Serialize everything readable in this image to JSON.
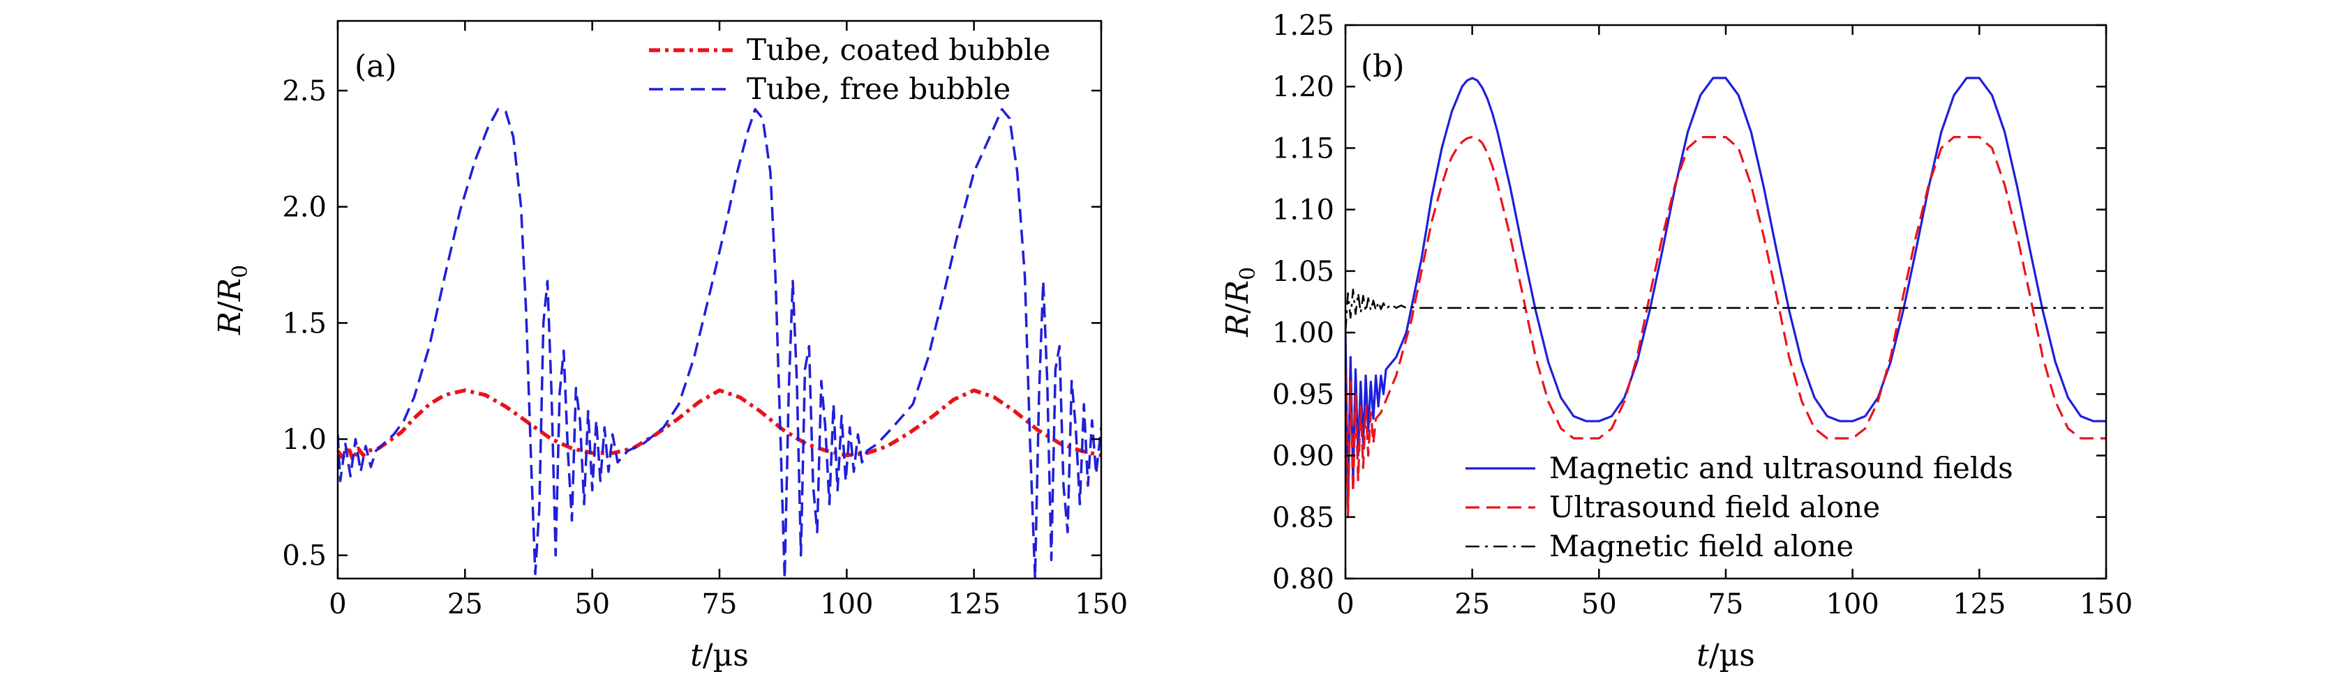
{
  "chart_data": [
    {
      "panel": "(a)",
      "type": "line",
      "xlabel_var": "t",
      "xlabel_unit": "/µs",
      "ylabel_var": "R",
      "ylabel_sep": "/",
      "ylabel_sub_var": "R",
      "ylabel_sub": "0",
      "xlim": [
        0,
        150
      ],
      "ylim": [
        0.4,
        2.8
      ],
      "xticks": [
        0,
        25,
        50,
        75,
        100,
        125,
        150
      ],
      "yticks": [
        0.5,
        1.0,
        1.5,
        2.0,
        2.5
      ],
      "ytick_labels": [
        "0.5",
        "1.0",
        "1.5",
        "2.0",
        "2.5"
      ],
      "legend_position": "top-right",
      "series": [
        {
          "name": "Tube, coated bubble",
          "color": "#e8141c",
          "style": "dash-dot-thick",
          "x": [
            0,
            1,
            2,
            3,
            4,
            5,
            6,
            8,
            10,
            12.5,
            15,
            18,
            21,
            25,
            29,
            33,
            37.5,
            42,
            46,
            50,
            54,
            58,
            62.5,
            67,
            71,
            75,
            79,
            83,
            87.5,
            92,
            96,
            100,
            104,
            108,
            112.5,
            117,
            121,
            125,
            129,
            133,
            137.5,
            142,
            146,
            150
          ],
          "y": [
            0.95,
            0.92,
            0.97,
            0.91,
            0.96,
            0.93,
            0.95,
            0.96,
            0.99,
            1.03,
            1.09,
            1.15,
            1.19,
            1.21,
            1.19,
            1.14,
            1.07,
            1.0,
            0.96,
            0.94,
            0.94,
            0.96,
            1.02,
            1.09,
            1.16,
            1.21,
            1.18,
            1.12,
            1.04,
            0.98,
            0.95,
            0.93,
            0.94,
            0.97,
            1.03,
            1.1,
            1.17,
            1.21,
            1.18,
            1.12,
            1.04,
            0.98,
            0.95,
            0.93
          ]
        },
        {
          "name": "Tube, free bubble",
          "color": "#1f1fd9",
          "style": "dashed",
          "x": [
            0,
            0.5,
            1.5,
            2.5,
            3.5,
            4.5,
            5.5,
            6.5,
            7.5,
            9,
            11,
            13,
            15,
            18,
            21,
            24,
            27,
            29.5,
            31.5,
            33,
            34.5,
            36,
            37,
            38,
            38.8,
            39.6,
            40.4,
            41.2,
            42,
            42.8,
            43.6,
            44.4,
            45.2,
            46,
            46.8,
            47.6,
            48.4,
            49.2,
            50,
            50.8,
            51.6,
            52.4,
            53.2,
            54,
            55,
            57,
            60,
            64,
            67,
            70,
            73,
            76,
            78.5,
            80.5,
            82,
            83.5,
            85,
            86,
            87,
            87.8,
            88.6,
            89.4,
            90.2,
            91,
            91.8,
            92.6,
            93.4,
            94.2,
            95,
            95.8,
            96.6,
            97.4,
            98.2,
            99,
            99.8,
            100.6,
            101.4,
            102.2,
            103,
            104,
            106,
            109,
            113,
            116,
            119,
            122,
            125,
            128.5,
            130.5,
            132,
            133.5,
            135,
            136,
            137,
            137.8,
            138.6,
            139.4,
            140.2,
            141,
            141.8,
            142.6,
            143.4,
            144.2,
            145,
            145.8,
            146.6,
            147.4,
            148.2,
            149,
            150
          ],
          "y": [
            1.02,
            0.82,
            0.98,
            0.84,
            1.0,
            0.86,
            0.97,
            0.88,
            0.95,
            0.98,
            1.02,
            1.08,
            1.18,
            1.4,
            1.7,
            1.98,
            2.2,
            2.34,
            2.42,
            2.41,
            2.3,
            2.0,
            1.55,
            0.9,
            0.42,
            0.7,
            1.5,
            1.68,
            1.2,
            0.5,
            1.2,
            1.38,
            0.95,
            0.65,
            1.22,
            1.08,
            0.72,
            1.12,
            0.78,
            1.08,
            0.82,
            1.05,
            0.86,
            1.02,
            0.9,
            0.95,
            0.98,
            1.05,
            1.15,
            1.35,
            1.62,
            1.9,
            2.15,
            2.32,
            2.42,
            2.38,
            2.15,
            1.7,
            1.0,
            0.4,
            1.2,
            1.68,
            1.25,
            0.5,
            1.3,
            1.4,
            0.8,
            0.6,
            1.25,
            1.05,
            0.72,
            1.15,
            0.78,
            1.1,
            0.82,
            1.05,
            0.86,
            1.02,
            0.9,
            0.95,
            0.98,
            1.05,
            1.15,
            1.35,
            1.62,
            1.9,
            2.15,
            2.32,
            2.42,
            2.38,
            2.15,
            1.7,
            1.0,
            0.4,
            1.2,
            1.68,
            1.25,
            0.48,
            1.3,
            1.4,
            0.8,
            0.6,
            1.25,
            1.05,
            0.72,
            1.15,
            0.8,
            1.08,
            0.85,
            1.05
          ]
        }
      ]
    },
    {
      "panel": "(b)",
      "type": "line",
      "xlabel_var": "t",
      "xlabel_unit": "/µs",
      "ylabel_var": "R",
      "ylabel_sep": "/",
      "ylabel_sub_var": "R",
      "ylabel_sub": "0",
      "xlim": [
        0,
        150
      ],
      "ylim": [
        0.8,
        1.25
      ],
      "xticks": [
        0,
        25,
        50,
        75,
        100,
        125,
        150
      ],
      "yticks": [
        0.8,
        0.85,
        0.9,
        0.95,
        1.0,
        1.05,
        1.1,
        1.15,
        1.2,
        1.25
      ],
      "ytick_labels": [
        "0.80",
        "0.85",
        "0.90",
        "0.95",
        "1.00",
        "1.05",
        "1.10",
        "1.15",
        "1.20",
        "1.25"
      ],
      "legend_position": "bottom-right",
      "series": [
        {
          "name": "Magnetic and ultrasound fields",
          "color": "#1f1fd9",
          "style": "solid",
          "x": [
            0,
            0.5,
            1,
            1.5,
            2,
            2.5,
            3,
            3.5,
            4,
            4.5,
            5,
            5.5,
            6,
            6.5,
            7,
            7.5,
            8,
            9,
            10,
            11,
            12,
            13,
            14,
            15,
            16,
            17,
            18,
            19,
            20,
            21,
            22,
            23,
            24,
            25,
            26,
            27,
            28,
            29,
            30,
            32.5,
            35,
            37.5,
            40,
            42.5,
            45,
            47.5,
            50,
            52.5,
            55,
            57.5,
            60,
            62.5,
            65,
            67.5,
            70,
            72.5,
            75,
            77.5,
            80,
            82.5,
            85,
            87.5,
            90,
            92.5,
            95,
            97.5,
            100,
            102.5,
            105,
            107.5,
            110,
            112.5,
            115,
            117.5,
            120,
            122.5,
            125,
            127.5,
            130,
            132.5,
            135,
            137.5,
            140,
            142.5,
            145,
            147.5,
            150
          ],
          "y": [
            1.0,
            0.86,
            0.98,
            0.88,
            0.97,
            0.9,
            0.96,
            0.91,
            0.965,
            0.92,
            0.96,
            0.93,
            0.965,
            0.94,
            0.965,
            0.95,
            0.97,
            0.975,
            0.98,
            0.99,
            1.0,
            1.02,
            1.04,
            1.06,
            1.085,
            1.11,
            1.13,
            1.15,
            1.165,
            1.18,
            1.19,
            1.2,
            1.205,
            1.207,
            1.205,
            1.199,
            1.19,
            1.178,
            1.163,
            1.118,
            1.067,
            1.018,
            0.976,
            0.947,
            0.932,
            0.928,
            0.928,
            0.932,
            0.947,
            0.976,
            1.018,
            1.067,
            1.118,
            1.163,
            1.193,
            1.207,
            1.207,
            1.193,
            1.163,
            1.118,
            1.067,
            1.018,
            0.976,
            0.947,
            0.932,
            0.928,
            0.928,
            0.932,
            0.947,
            0.976,
            1.018,
            1.067,
            1.118,
            1.163,
            1.193,
            1.207,
            1.207,
            1.193,
            1.163,
            1.118,
            1.067,
            1.018,
            0.976,
            0.947,
            0.932,
            0.928,
            0.928
          ]
        },
        {
          "name": "Ultrasound field alone",
          "color": "#e8141c",
          "style": "dashed",
          "x": [
            0,
            0.5,
            1,
            1.5,
            2,
            2.5,
            3,
            3.5,
            4,
            4.5,
            5,
            5.5,
            6,
            7,
            8,
            9,
            10,
            11,
            12,
            13,
            14,
            15,
            16,
            17,
            18,
            19,
            20,
            21,
            22,
            23,
            24,
            25,
            26,
            27,
            28,
            29,
            30,
            32.5,
            35,
            37.5,
            40,
            42.5,
            45,
            47.5,
            50,
            52.5,
            55,
            57.5,
            60,
            62.5,
            65,
            67.5,
            70,
            72.5,
            75,
            77.5,
            80,
            82.5,
            85,
            87.5,
            90,
            92.5,
            95,
            97.5,
            100,
            102.5,
            105,
            107.5,
            110,
            112.5,
            115,
            117.5,
            120,
            122.5,
            125,
            127.5,
            130,
            132.5,
            135,
            137.5,
            140,
            142.5,
            145,
            147.5,
            150
          ],
          "y": [
            0.97,
            0.85,
            0.96,
            0.87,
            0.95,
            0.88,
            0.94,
            0.89,
            0.94,
            0.9,
            0.935,
            0.91,
            0.93,
            0.935,
            0.945,
            0.955,
            0.965,
            0.98,
            0.995,
            1.01,
            1.03,
            1.05,
            1.07,
            1.09,
            1.105,
            1.12,
            1.133,
            1.143,
            1.15,
            1.155,
            1.158,
            1.159,
            1.158,
            1.154,
            1.146,
            1.135,
            1.12,
            1.078,
            1.03,
            0.98,
            0.944,
            0.922,
            0.914,
            0.914,
            0.914,
            0.922,
            0.944,
            0.98,
            1.03,
            1.078,
            1.12,
            1.15,
            1.159,
            1.159,
            1.159,
            1.15,
            1.12,
            1.078,
            1.03,
            0.98,
            0.944,
            0.922,
            0.914,
            0.914,
            0.914,
            0.922,
            0.944,
            0.98,
            1.03,
            1.078,
            1.12,
            1.15,
            1.159,
            1.159,
            1.159,
            1.15,
            1.12,
            1.078,
            1.03,
            0.98,
            0.944,
            0.922,
            0.914,
            0.914,
            0.914
          ]
        },
        {
          "name": "Magnetic field alone",
          "color": "#000000",
          "style": "dash-dot",
          "x": [
            0,
            0.5,
            1,
            1.5,
            2,
            2.5,
            3,
            3.5,
            4,
            4.5,
            5,
            5.5,
            6,
            6.5,
            7,
            7.5,
            8,
            9,
            10,
            11,
            12,
            13,
            14,
            15,
            20,
            30,
            50,
            75,
            100,
            125,
            150
          ],
          "y": [
            1.0,
            1.032,
            1.012,
            1.035,
            1.015,
            1.032,
            1.016,
            1.03,
            1.017,
            1.028,
            1.018,
            1.026,
            1.018,
            1.025,
            1.019,
            1.024,
            1.019,
            1.023,
            1.02,
            1.022,
            1.02,
            1.021,
            1.02,
            1.02,
            1.02,
            1.02,
            1.02,
            1.02,
            1.02,
            1.02,
            1.02
          ]
        }
      ]
    }
  ]
}
